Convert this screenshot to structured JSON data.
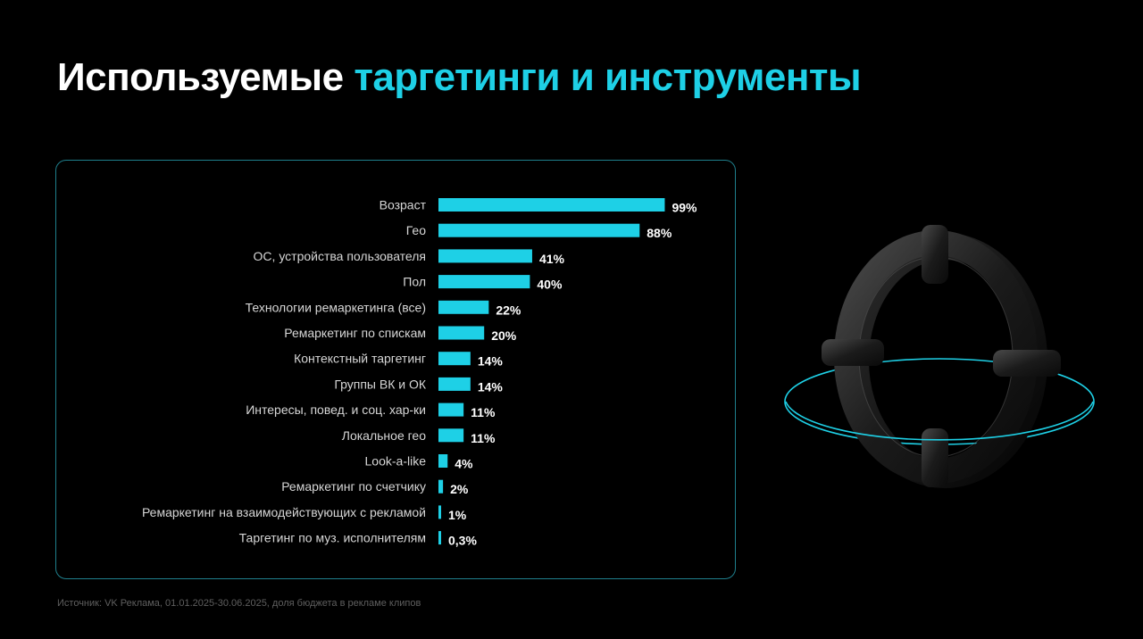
{
  "header": {
    "title_main": "Используемые",
    "title_accent": "таргетинги и инструменты"
  },
  "colors": {
    "accent": "#1ed0e6",
    "bar": "#1ed0e6",
    "background": "#000000",
    "panel_border": "#1f7f8c"
  },
  "decoration": {
    "icon": "crosshair-ring-icon"
  },
  "chart_data": {
    "type": "bar",
    "orientation": "horizontal",
    "categories": [
      "Возраст",
      "Гео",
      "ОС, устройства пользователя",
      "Пол",
      "Технологии ремаркетинга (все)",
      "Ремаркетинг по спискам",
      "Контекстный таргетинг",
      "Группы ВК и ОК",
      "Интересы, повед. и соц. хар-ки",
      "Локальное гео",
      "Look-a-like",
      "Ремаркетинг по счетчику",
      "Ремаркетинг на взаимодействующих с рекламой",
      "Таргетинг по муз. исполнителям"
    ],
    "values": [
      99,
      88,
      41,
      40,
      22,
      20,
      14,
      14,
      11,
      11,
      4,
      2,
      1,
      0.3
    ],
    "labels": [
      "99%",
      "88%",
      "41%",
      "40%",
      "22%",
      "20%",
      "14%",
      "14%",
      "11%",
      "11%",
      "4%",
      "2%",
      "1%",
      "0,3%"
    ],
    "xlim": [
      0,
      100
    ],
    "grid": false,
    "legend": "none"
  },
  "footer": {
    "source": "Источник: VK Реклама, 01.01.2025-30.06.2025, доля бюджета в рекламе клипов"
  }
}
